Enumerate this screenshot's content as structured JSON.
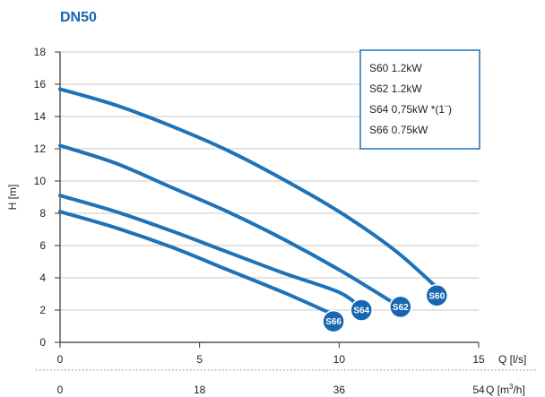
{
  "chart_data": {
    "type": "line",
    "title": "DN50",
    "ylabel": "H [m]",
    "ylim": [
      0,
      18
    ],
    "yticks": [
      0,
      2,
      4,
      6,
      8,
      10,
      12,
      14,
      16,
      18
    ],
    "xlim": [
      0,
      15
    ],
    "xticks": [
      0,
      5,
      10,
      15
    ],
    "xlabel": "Q [l/s]",
    "secondary_x": {
      "label_prefix": "Q [m",
      "label_sup": "3",
      "label_suffix": "/h]",
      "ticks": [
        0,
        18,
        36,
        54
      ]
    },
    "grid": "horizontal",
    "legend": {
      "placement": "top-right",
      "entries": [
        "S60 1.2kW",
        "S62 1.2kW",
        "S64 0,75kW *(1¨)",
        "S66 0.75kW"
      ]
    },
    "series": [
      {
        "name": "S60",
        "x": [
          0,
          2,
          4,
          6,
          8,
          10,
          12,
          13.5
        ],
        "values": [
          15.7,
          14.7,
          13.4,
          11.9,
          10.1,
          8.1,
          5.7,
          3.4
        ],
        "badge": {
          "x": 13.5,
          "y": 2.9
        }
      },
      {
        "name": "S62",
        "x": [
          0,
          2,
          4,
          6,
          8,
          10,
          11.9
        ],
        "values": [
          12.2,
          11.1,
          9.6,
          8.1,
          6.4,
          4.5,
          2.5
        ],
        "badge": {
          "x": 12.2,
          "y": 2.2
        }
      },
      {
        "name": "S64",
        "x": [
          0,
          2,
          4,
          6,
          8,
          10,
          10.8
        ],
        "values": [
          9.1,
          8.1,
          6.9,
          5.6,
          4.3,
          3.1,
          2.1
        ],
        "badge": {
          "x": 10.8,
          "y": 2.0
        }
      },
      {
        "name": "S66",
        "x": [
          0,
          2,
          4,
          6,
          8,
          9.7
        ],
        "values": [
          8.1,
          7.1,
          5.9,
          4.5,
          3.1,
          1.8
        ],
        "badge": {
          "x": 9.8,
          "y": 1.3
        }
      }
    ]
  },
  "colors": {
    "title": "#1866b0",
    "line": "#1e72b8",
    "badge": "#1866b0",
    "legend_border": "#1e72b8",
    "grid": "#c8c8c8",
    "axis": "#333333"
  }
}
